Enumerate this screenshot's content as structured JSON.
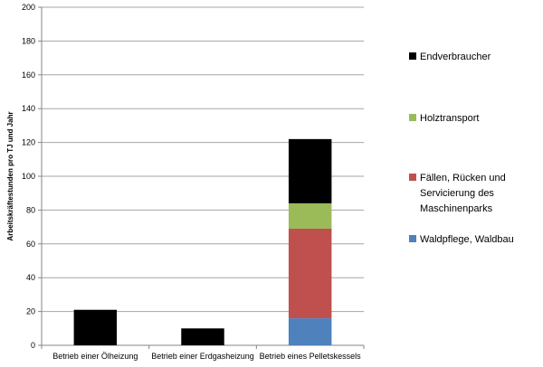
{
  "chart_data": {
    "type": "bar",
    "stacked": true,
    "title": "",
    "xlabel": "",
    "ylabel": "Arbeitskräftestunden pro TJ und Jahr",
    "ylim": [
      0,
      200
    ],
    "yticks": [
      0,
      20,
      40,
      60,
      80,
      100,
      120,
      140,
      160,
      180,
      200
    ],
    "grid": true,
    "legend_position": "right",
    "categories": [
      "Betrieb einer Ölheizung",
      "Betrieb einer Erdgasheizung",
      "Betrieb eines Pelletskessels"
    ],
    "series": [
      {
        "name": "Waldpflege, Waldbau",
        "color": "#4f81bd",
        "values": [
          0,
          0,
          16
        ]
      },
      {
        "name": "Fällen, Rücken und Servicierung des Maschinenparks",
        "legend_lines": [
          "Fällen, Rücken und",
          "Servicierung des",
          "Maschinenparks"
        ],
        "color": "#c0504d",
        "values": [
          0,
          0,
          53
        ]
      },
      {
        "name": "Holztransport",
        "color": "#9bbb59",
        "values": [
          0,
          0,
          15
        ]
      },
      {
        "name": "Endverbraucher",
        "color": "#000000",
        "values": [
          21,
          10,
          38
        ]
      }
    ],
    "legend_order": [
      3,
      2,
      1,
      0
    ]
  }
}
